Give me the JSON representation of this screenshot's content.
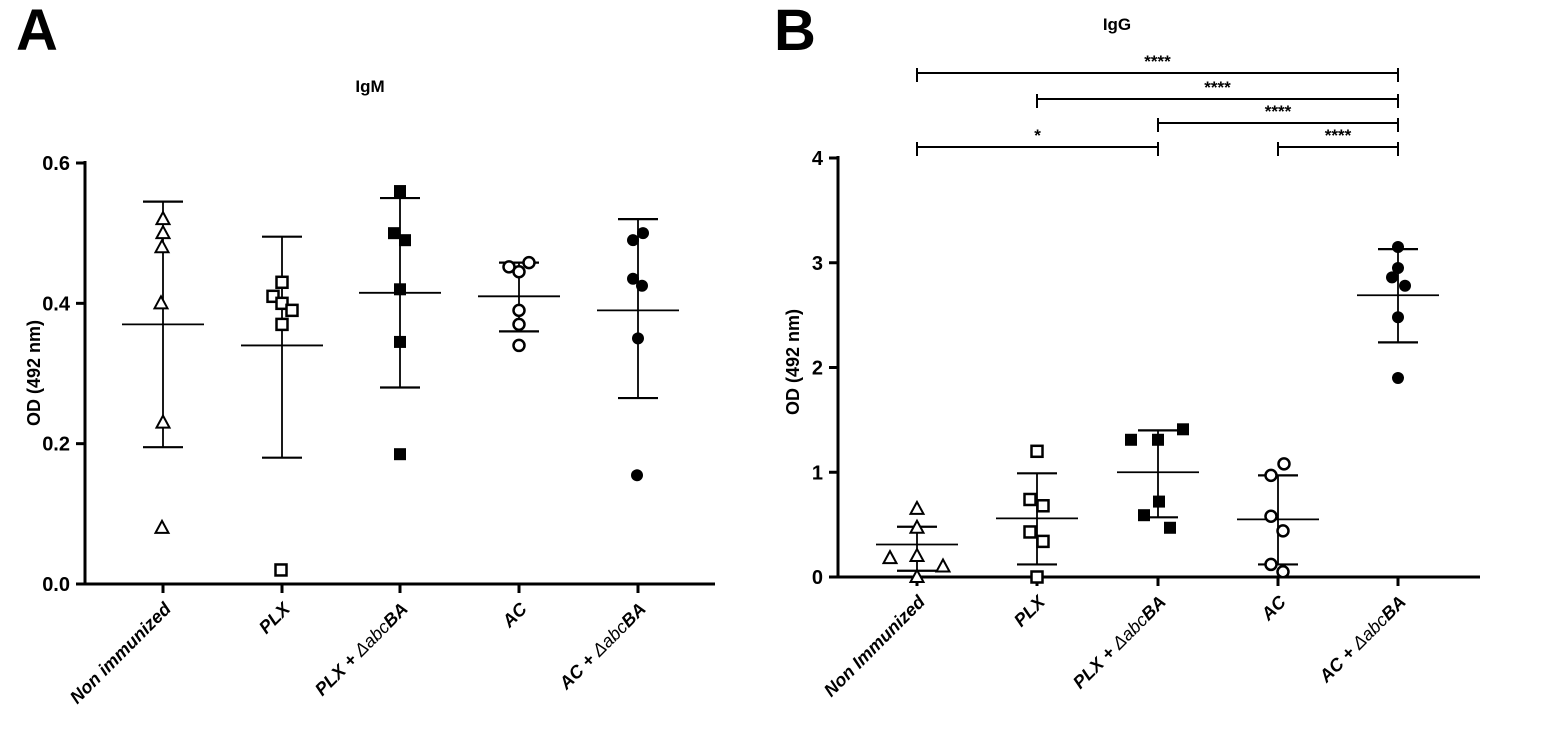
{
  "figure": {
    "background_color": "#ffffff",
    "ink_color": "#000000"
  },
  "chart_data": [
    {
      "type": "scatter",
      "panel": "A",
      "title": "IgM",
      "ylabel": "OD (492 nm)",
      "ylim": [
        0,
        0.6
      ],
      "ytick_labels": [
        "0.0",
        "0.2",
        "0.4",
        "0.6"
      ],
      "ytick_values": [
        0,
        0.2,
        0.4,
        0.6
      ],
      "grid": "off",
      "legend": "none",
      "groups": [
        {
          "label": "Non immunized",
          "label_parts": {
            "pre": "Non immunized",
            "it": "",
            "post": ""
          },
          "marker": "triangle-open",
          "points": [
            [
              0.52,
              0
            ],
            [
              0.5,
              0
            ],
            [
              0.48,
              -1
            ],
            [
              0.4,
              -2
            ],
            [
              0.23,
              0
            ],
            [
              0.08,
              -1
            ]
          ],
          "mean": 0.37,
          "err_low": 0.195,
          "err_high": 0.545
        },
        {
          "label": "PLX",
          "label_parts": {
            "pre": "PLX",
            "it": "",
            "post": ""
          },
          "marker": "square-open",
          "points": [
            [
              0.43,
              0
            ],
            [
              0.41,
              -9
            ],
            [
              0.4,
              0
            ],
            [
              0.39,
              10
            ],
            [
              0.37,
              0
            ],
            [
              0.02,
              -1
            ]
          ],
          "mean": 0.34,
          "err_low": 0.18,
          "err_high": 0.495
        },
        {
          "label": "PLX + ΔabcBA",
          "label_parts": {
            "pre": "PLX + ",
            "it": "Δabc",
            "post": "BA"
          },
          "marker": "square-filled",
          "points": [
            [
              0.56,
              0
            ],
            [
              0.5,
              -6
            ],
            [
              0.49,
              5
            ],
            [
              0.42,
              0
            ],
            [
              0.345,
              0
            ],
            [
              0.185,
              0
            ]
          ],
          "mean": 0.415,
          "err_low": 0.28,
          "err_high": 0.55
        },
        {
          "label": "AC",
          "label_parts": {
            "pre": "AC",
            "it": "",
            "post": ""
          },
          "marker": "circle-open",
          "points": [
            [
              0.458,
              10
            ],
            [
              0.452,
              -10
            ],
            [
              0.445,
              0
            ],
            [
              0.39,
              0
            ],
            [
              0.37,
              0
            ],
            [
              0.34,
              0
            ]
          ],
          "mean": 0.41,
          "err_low": 0.36,
          "err_high": 0.458
        },
        {
          "label": "AC + ΔabcBA",
          "label_parts": {
            "pre": "AC + ",
            "it": "Δabc",
            "post": "BA"
          },
          "marker": "circle-filled",
          "points": [
            [
              0.5,
              5
            ],
            [
              0.49,
              -5
            ],
            [
              0.435,
              -5
            ],
            [
              0.425,
              4
            ],
            [
              0.35,
              0
            ],
            [
              0.155,
              -1
            ]
          ],
          "mean": 0.39,
          "err_low": 0.265,
          "err_high": 0.52
        }
      ],
      "brackets": []
    },
    {
      "type": "scatter",
      "panel": "B",
      "title": "IgG",
      "ylabel": "OD (492 nm)",
      "ylim": [
        0,
        4
      ],
      "ytick_labels": [
        "0",
        "1",
        "2",
        "3",
        "4"
      ],
      "ytick_values": [
        0,
        1,
        2,
        3,
        4
      ],
      "grid": "off",
      "legend": "none",
      "groups": [
        {
          "label": "Non Immunized",
          "label_parts": {
            "pre": "Non Immunized",
            "it": "",
            "post": ""
          },
          "marker": "triangle-open",
          "points": [
            [
              0.65,
              0
            ],
            [
              0.47,
              0
            ],
            [
              0.2,
              0
            ],
            [
              0.18,
              -27
            ],
            [
              0.1,
              26
            ],
            [
              0.0,
              0
            ]
          ],
          "mean": 0.31,
          "err_low": 0.06,
          "err_high": 0.48
        },
        {
          "label": "PLX",
          "label_parts": {
            "pre": "PLX",
            "it": "",
            "post": ""
          },
          "marker": "square-open",
          "points": [
            [
              1.2,
              0
            ],
            [
              0.74,
              -7
            ],
            [
              0.68,
              6
            ],
            [
              0.43,
              -7
            ],
            [
              0.34,
              6
            ],
            [
              0.0,
              0
            ]
          ],
          "mean": 0.56,
          "err_low": 0.12,
          "err_high": 0.99
        },
        {
          "label": "PLX + ΔabcBA",
          "label_parts": {
            "pre": "PLX + ",
            "it": "Δabc",
            "post": "BA"
          },
          "marker": "square-filled",
          "points": [
            [
              1.41,
              25
            ],
            [
              1.31,
              -27
            ],
            [
              1.31,
              0
            ],
            [
              0.72,
              1
            ],
            [
              0.59,
              -14
            ],
            [
              0.47,
              12
            ]
          ],
          "mean": 1.0,
          "err_low": 0.57,
          "err_high": 1.4
        },
        {
          "label": "AC",
          "label_parts": {
            "pre": "AC",
            "it": "",
            "post": ""
          },
          "marker": "circle-open",
          "points": [
            [
              1.08,
              6
            ],
            [
              0.97,
              -7
            ],
            [
              0.58,
              -7
            ],
            [
              0.44,
              5
            ],
            [
              0.12,
              -7
            ],
            [
              0.05,
              5
            ]
          ],
          "mean": 0.55,
          "err_low": 0.12,
          "err_high": 0.97
        },
        {
          "label": "AC + ΔabcBA",
          "label_parts": {
            "pre": "AC + ",
            "it": "Δabc",
            "post": "BA"
          },
          "marker": "circle-filled",
          "points": [
            [
              3.15,
              0
            ],
            [
              2.95,
              0
            ],
            [
              2.86,
              -6
            ],
            [
              2.78,
              7
            ],
            [
              2.48,
              0
            ],
            [
              1.9,
              0
            ]
          ],
          "mean": 2.69,
          "err_low": 2.24,
          "err_high": 3.13
        }
      ],
      "brackets": [
        {
          "from": 0,
          "to": 4,
          "row": 0,
          "label": "****"
        },
        {
          "from": 1,
          "to": 4,
          "row": 1,
          "label": "****"
        },
        {
          "from": 2,
          "to": 4,
          "row": 2,
          "label": "****"
        },
        {
          "from": 0,
          "to": 2,
          "row": 3,
          "label": "*"
        },
        {
          "from": 3,
          "to": 4,
          "row": 3,
          "label": "****"
        }
      ]
    }
  ]
}
